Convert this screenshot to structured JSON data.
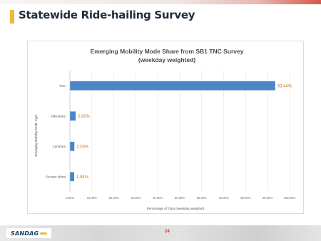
{
  "slide": {
    "title": "Statewide Ride-hailing Survey",
    "page_number": "24",
    "logo_text": "SANDAG"
  },
  "chart_data": {
    "type": "bar",
    "orientation": "horizontal",
    "title": "Emerging Mobility Mode Share from SB1 TNC Survey",
    "subtitle": "(weekday weighted)",
    "xlabel": "Percentage of Trips (weekday weighted)",
    "ylabel": "Emerging Mobility Mode Type",
    "categories": [
      "TNC",
      "Bikeshare",
      "Carshare",
      "Scooter share"
    ],
    "values": [
      93.44,
      2.6,
      2.03,
      1.94
    ],
    "data_labels": [
      "93.44%",
      "2.60%",
      "2.03%",
      "1.94%"
    ],
    "xlim": [
      0,
      100
    ],
    "x_ticks": [
      "0.00%",
      "10.00%",
      "20.00%",
      "30.00%",
      "40.00%",
      "50.00%",
      "60.00%",
      "70.00%",
      "80.00%",
      "90.00%",
      "100.00%"
    ],
    "bar_color": "#4a86c8",
    "label_color": "#d0781e",
    "grid": true
  }
}
